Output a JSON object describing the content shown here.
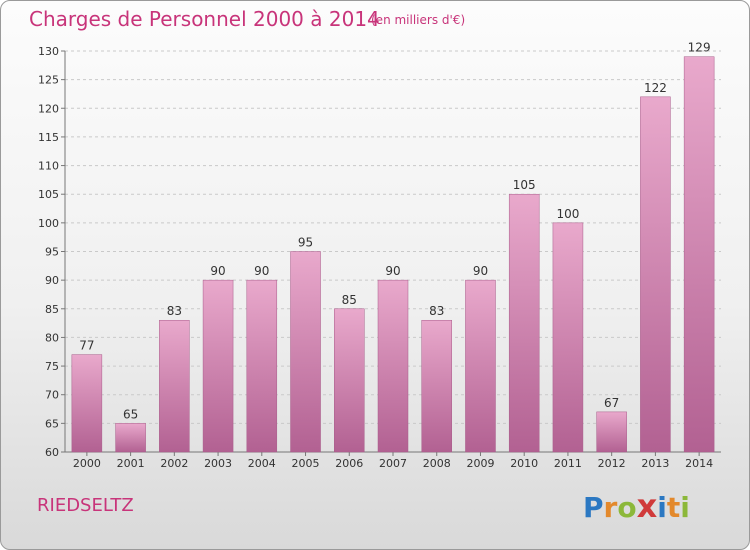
{
  "header": {
    "title": "Charges de Personnel 2000 à 2014",
    "subtitle": "(en milliers d'€)"
  },
  "footer": {
    "place": "RIEDSELTZ",
    "logo_text": "Proxiti",
    "logo_letters": [
      {
        "ch": "P",
        "color": "#2b78c2"
      },
      {
        "ch": "r",
        "color": "#e3892c"
      },
      {
        "ch": "o",
        "color": "#8cb83a"
      },
      {
        "ch": "x",
        "color": "#d03a3a"
      },
      {
        "ch": "i",
        "color": "#2b78c2"
      },
      {
        "ch": "t",
        "color": "#e3892c"
      },
      {
        "ch": "i",
        "color": "#8cb83a"
      }
    ]
  },
  "colors": {
    "accent": "#c8347a",
    "bar_top": "#e9a9cc",
    "bar_bottom": "#b26192"
  },
  "chart_data": {
    "type": "bar",
    "title": "Charges de Personnel 2000 à 2014",
    "subtitle": "(en milliers d'€)",
    "categories": [
      "2000",
      "2001",
      "2002",
      "2003",
      "2004",
      "2005",
      "2006",
      "2007",
      "2008",
      "2009",
      "2010",
      "2011",
      "2012",
      "2013",
      "2014"
    ],
    "values": [
      77,
      65,
      83,
      90,
      90,
      95,
      85,
      90,
      83,
      90,
      105,
      100,
      67,
      122,
      129
    ],
    "xlabel": "",
    "ylabel": "",
    "ylim": [
      60,
      130
    ],
    "yticks": [
      60,
      65,
      70,
      75,
      80,
      85,
      90,
      95,
      100,
      105,
      110,
      115,
      120,
      125,
      130
    ],
    "grid": true,
    "data_labels": true
  }
}
